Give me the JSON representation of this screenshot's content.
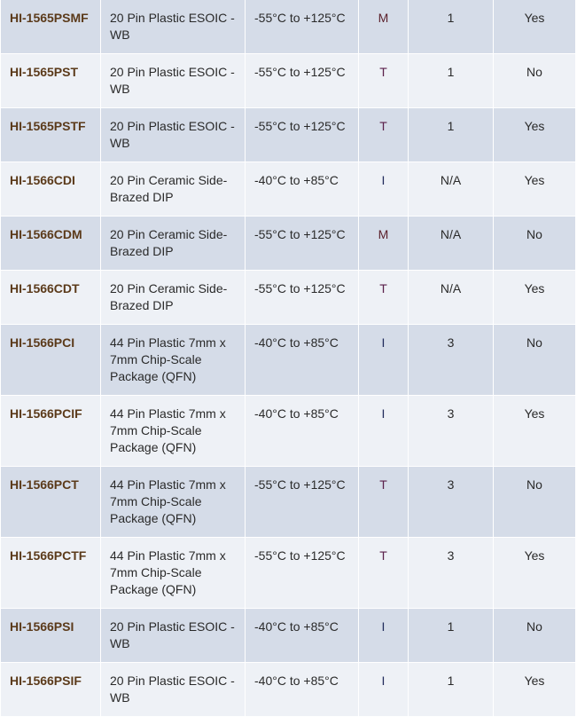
{
  "rows": [
    {
      "part": "HI-1565PSMF",
      "package": "20 Pin Plastic ESOIC - WB",
      "temp": "-55°C to +125°C",
      "grade": "M",
      "col5": "1",
      "col6": "Yes"
    },
    {
      "part": "HI-1565PST",
      "package": "20 Pin Plastic ESOIC - WB",
      "temp": "-55°C to +125°C",
      "grade": "T",
      "col5": "1",
      "col6": "No"
    },
    {
      "part": "HI-1565PSTF",
      "package": "20 Pin Plastic ESOIC - WB",
      "temp": "-55°C to +125°C",
      "grade": "T",
      "col5": "1",
      "col6": "Yes"
    },
    {
      "part": "HI-1566CDI",
      "package": "20 Pin Ceramic Side-Brazed DIP",
      "temp": "-40°C to +85°C",
      "grade": "I",
      "col5": "N/A",
      "col6": "Yes"
    },
    {
      "part": "HI-1566CDM",
      "package": "20 Pin Ceramic Side-Brazed DIP",
      "temp": "-55°C to +125°C",
      "grade": "M",
      "col5": "N/A",
      "col6": "No"
    },
    {
      "part": "HI-1566CDT",
      "package": "20 Pin Ceramic Side-Brazed DIP",
      "temp": "-55°C to +125°C",
      "grade": "T",
      "col5": "N/A",
      "col6": "Yes"
    },
    {
      "part": "HI-1566PCI",
      "package": "44 Pin Plastic 7mm x 7mm Chip-Scale Package (QFN)",
      "temp": "-40°C to +85°C",
      "grade": "I",
      "col5": "3",
      "col6": "No"
    },
    {
      "part": "HI-1566PCIF",
      "package": "44 Pin Plastic 7mm x 7mm Chip-Scale Package (QFN)",
      "temp": "-40°C to +85°C",
      "grade": "I",
      "col5": "3",
      "col6": "Yes"
    },
    {
      "part": "HI-1566PCT",
      "package": "44 Pin Plastic 7mm x 7mm Chip-Scale Package (QFN)",
      "temp": "-55°C to +125°C",
      "grade": "T",
      "col5": "3",
      "col6": "No"
    },
    {
      "part": "HI-1566PCTF",
      "package": "44 Pin Plastic 7mm x 7mm Chip-Scale Package (QFN)",
      "temp": "-55°C to +125°C",
      "grade": "T",
      "col5": "3",
      "col6": "Yes"
    },
    {
      "part": "HI-1566PSI",
      "package": "20 Pin Plastic ESOIC - WB",
      "temp": "-40°C to +85°C",
      "grade": "I",
      "col5": "1",
      "col6": "No"
    },
    {
      "part": "HI-1566PSIF",
      "package": "20 Pin Plastic ESOIC - WB",
      "temp": "-40°C to +85°C",
      "grade": "I",
      "col5": "1",
      "col6": "Yes"
    }
  ],
  "grade_colors": {
    "M": "#5a1f2a",
    "T": "#5a1f4a",
    "I": "#1f2a5a"
  }
}
